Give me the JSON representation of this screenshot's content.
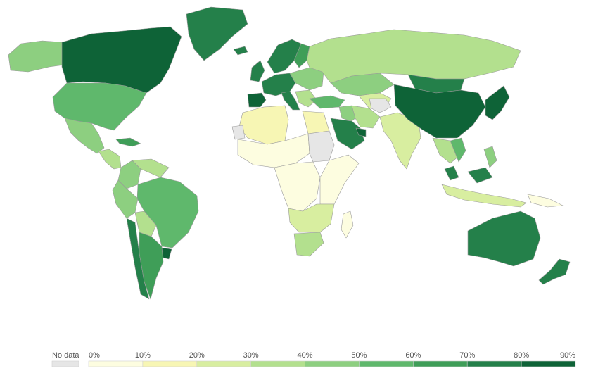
{
  "legend": {
    "no_data_label": "No data",
    "no_data_color": "#e6e6e6",
    "ticks": [
      "0%",
      "10%",
      "20%",
      "30%",
      "40%",
      "50%",
      "60%",
      "70%",
      "80%",
      "90%"
    ],
    "colors": [
      "#fdfde0",
      "#f7f6b4",
      "#d8eea0",
      "#b3e08e",
      "#8dcf80",
      "#5fb86c",
      "#3f9e58",
      "#24804a",
      "#0e6337"
    ]
  },
  "regions": [
    {
      "id": "alaska",
      "value": 0.45
    },
    {
      "id": "canada",
      "value": 0.85
    },
    {
      "id": "greenland",
      "value": 0.75
    },
    {
      "id": "usa",
      "value": 0.52
    },
    {
      "id": "mexico",
      "value": 0.48
    },
    {
      "id": "central-america",
      "value": 0.35
    },
    {
      "id": "cuba",
      "value": 0.6
    },
    {
      "id": "colombia",
      "value": 0.45
    },
    {
      "id": "venezuela",
      "value": 0.35
    },
    {
      "id": "brazil",
      "value": 0.55
    },
    {
      "id": "peru",
      "value": 0.4
    },
    {
      "id": "bolivia",
      "value": 0.3
    },
    {
      "id": "chile",
      "value": 0.7
    },
    {
      "id": "argentina",
      "value": 0.68
    },
    {
      "id": "uruguay",
      "value": 0.85
    },
    {
      "id": "scandinavia",
      "value": 0.75
    },
    {
      "id": "finland",
      "value": 0.65
    },
    {
      "id": "uk",
      "value": 0.72
    },
    {
      "id": "iceland",
      "value": 0.75
    },
    {
      "id": "western-europe",
      "value": 0.7
    },
    {
      "id": "iberia",
      "value": 0.85
    },
    {
      "id": "eastern-europe",
      "value": 0.45
    },
    {
      "id": "balkans",
      "value": 0.35
    },
    {
      "id": "italy",
      "value": 0.7
    },
    {
      "id": "russia",
      "value": 0.35
    },
    {
      "id": "kazakhstan",
      "value": 0.45
    },
    {
      "id": "central-asia",
      "value": 0.25
    },
    {
      "id": "turkey",
      "value": 0.5
    },
    {
      "id": "middle-east",
      "value": 0.4
    },
    {
      "id": "iran",
      "value": 0.3
    },
    {
      "id": "afghanistan",
      "value": null
    },
    {
      "id": "saudi-arabia",
      "value": 0.7
    },
    {
      "id": "uae",
      "value": 0.9
    },
    {
      "id": "india",
      "value": 0.25
    },
    {
      "id": "mongolia",
      "value": 0.7
    },
    {
      "id": "china",
      "value": 0.85
    },
    {
      "id": "korea-japan",
      "value": 0.85
    },
    {
      "id": "southeast-asia",
      "value": 0.35
    },
    {
      "id": "vietnam",
      "value": 0.55
    },
    {
      "id": "malaysia",
      "value": 0.75
    },
    {
      "id": "indonesia",
      "value": 0.25
    },
    {
      "id": "philippines",
      "value": 0.4
    },
    {
      "id": "png",
      "value": 0.05
    },
    {
      "id": "north-africa-west",
      "value": 0.15
    },
    {
      "id": "egypt",
      "value": 0.15
    },
    {
      "id": "sahel",
      "value": 0.05
    },
    {
      "id": "west-sahara",
      "value": null
    },
    {
      "id": "sudan",
      "value": null
    },
    {
      "id": "central-africa",
      "value": 0.05
    },
    {
      "id": "east-africa",
      "value": 0.05
    },
    {
      "id": "southern-africa",
      "value": 0.2
    },
    {
      "id": "south-africa",
      "value": 0.3
    },
    {
      "id": "madagascar",
      "value": 0.05
    },
    {
      "id": "australia",
      "value": 0.7
    },
    {
      "id": "new-zealand",
      "value": 0.72
    }
  ]
}
